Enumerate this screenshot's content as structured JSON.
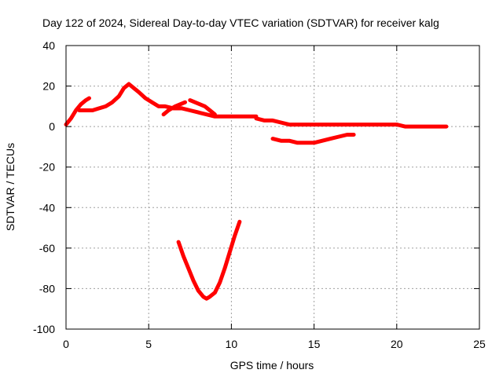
{
  "chart_data": {
    "type": "line",
    "title": "Day 122 of 2024, Sidereal Day-to-day VTEC variation (SDTVAR) for receiver kalg",
    "xlabel": "GPS time / hours",
    "ylabel": "SDTVAR / TECUs",
    "xlim": [
      0,
      25
    ],
    "ylim": [
      -100,
      40
    ],
    "xticks": [
      0,
      5,
      10,
      15,
      20,
      25
    ],
    "yticks": [
      -100,
      -80,
      -60,
      -40,
      -20,
      0,
      20,
      40
    ],
    "grid": true,
    "series": [
      {
        "name": "arc-1",
        "color": "#ff0000",
        "x": [
          0.0,
          0.3,
          0.6,
          0.9,
          1.2,
          1.4
        ],
        "y": [
          1,
          4,
          8,
          11,
          13,
          14
        ]
      },
      {
        "name": "arc-2",
        "color": "#ff0000",
        "x": [
          0.8,
          1.2,
          1.6,
          2.0,
          2.4,
          2.8,
          3.2,
          3.5,
          3.8,
          4.1,
          4.4,
          4.8,
          5.2,
          5.6,
          6.0,
          6.5,
          7.0
        ],
        "y": [
          8,
          8,
          8,
          9,
          10,
          12,
          15,
          19,
          21,
          19,
          17,
          14,
          12,
          10,
          10,
          9,
          9
        ]
      },
      {
        "name": "arc-3",
        "color": "#ff0000",
        "x": [
          5.9,
          6.2,
          6.6,
          6.9,
          7.2
        ],
        "y": [
          6,
          8,
          10,
          11,
          12
        ]
      },
      {
        "name": "arc-4",
        "color": "#ff0000",
        "x": [
          6.5,
          7.0,
          7.5,
          8.0,
          8.5,
          9.0,
          9.5,
          10.0,
          10.5,
          11.0,
          11.5
        ],
        "y": [
          9,
          9,
          8,
          7,
          6,
          5,
          5,
          5,
          5,
          5,
          5
        ]
      },
      {
        "name": "arc-5",
        "color": "#ff0000",
        "x": [
          7.5,
          7.8,
          8.1,
          8.4,
          8.7,
          9.0
        ],
        "y": [
          13,
          12,
          11,
          10,
          8,
          6
        ]
      },
      {
        "name": "arc-6",
        "color": "#ff0000",
        "x": [
          11.5,
          12.0,
          12.5,
          13.0,
          13.5,
          14.0,
          14.5,
          15.0,
          15.5,
          16.0,
          16.5,
          17.0,
          17.5,
          18.0,
          18.5,
          19.0,
          19.5,
          20.0,
          20.5,
          21.0,
          21.5,
          22.0,
          22.5,
          23.0
        ],
        "y": [
          4,
          3,
          3,
          2,
          1,
          1,
          1,
          1,
          1,
          1,
          1,
          1,
          1,
          1,
          1,
          1,
          1,
          1,
          0,
          0,
          0,
          0,
          0,
          0
        ]
      },
      {
        "name": "arc-7",
        "color": "#ff0000",
        "x": [
          12.5,
          13.0,
          13.5,
          14.0,
          14.5,
          15.0,
          15.5,
          16.0,
          16.5,
          17.0,
          17.4
        ],
        "y": [
          -6,
          -7,
          -7,
          -8,
          -8,
          -8,
          -7,
          -6,
          -5,
          -4,
          -4
        ]
      },
      {
        "name": "arc-8",
        "color": "#ff0000",
        "x": [
          6.8,
          7.1,
          7.4,
          7.7,
          8.0,
          8.3,
          8.5,
          8.7,
          9.0,
          9.3,
          9.6,
          9.9,
          10.2,
          10.5
        ],
        "y": [
          -57,
          -64,
          -70,
          -76,
          -81,
          -84,
          -85,
          -84,
          -82,
          -77,
          -70,
          -62,
          -54,
          -47
        ]
      }
    ]
  }
}
